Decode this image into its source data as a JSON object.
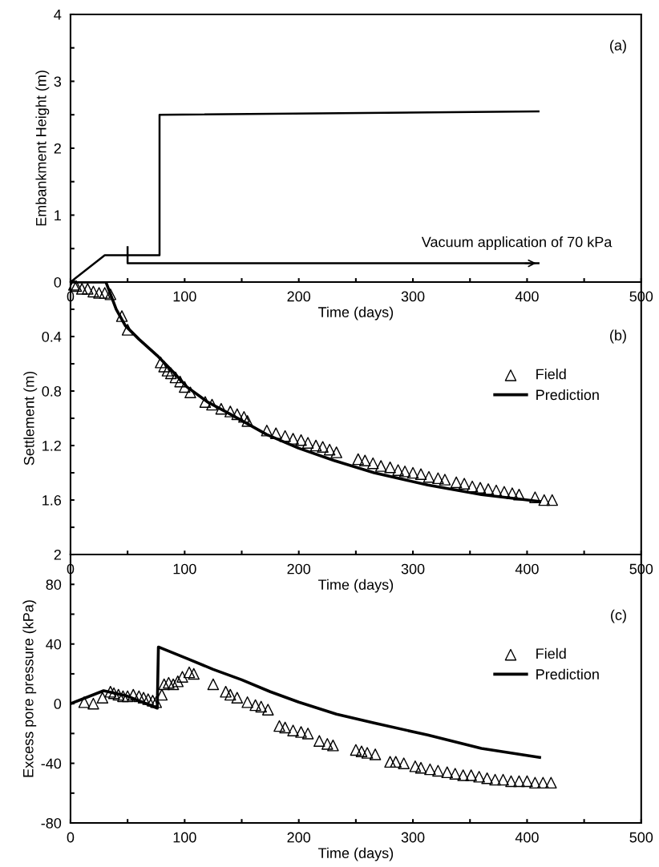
{
  "chart_data": [
    {
      "type": "line",
      "xlabel": "Time (days)",
      "ylabel": "Embankment Height (m)",
      "xlim": [
        0,
        500
      ],
      "ylim": [
        0,
        4
      ],
      "xticks": [
        0,
        {
          "value": 50,
          "label": null
        },
        100,
        {
          "value": 150,
          "label": null
        },
        200,
        {
          "value": 250,
          "label": null
        },
        300,
        {
          "value": 350,
          "label": null
        },
        400,
        {
          "value": 450,
          "label": null
        },
        500
      ],
      "yticks": [
        {
          "value": 0,
          "label": null
        },
        {
          "value": 0.5,
          "label": null
        },
        1,
        {
          "value": 1.5,
          "label": null
        },
        2,
        {
          "value": 2.5,
          "label": null
        },
        3,
        {
          "value": 3.5,
          "label": null
        },
        4
      ],
      "series": [
        {
          "type": "line",
          "color": "#000000",
          "marker": "none",
          "x": [
            0,
            30,
            78,
            78,
            410
          ],
          "values": [
            0,
            0.4,
            0.4,
            2.5,
            2.55
          ]
        },
        {
          "type": "line",
          "color": "#000000",
          "marker": "none",
          "x": [
            50,
            50,
            410
          ],
          "values": [
            0.52,
            0.28,
            0.28
          ]
        }
      ],
      "annotations": [
        "(a)",
        {
          "text": "Vacuum application of 70 kPa",
          "x": 410,
          "y": 0.28
        }
      ]
    },
    {
      "type": "line",
      "xlabel": "Time (days)",
      "ylabel": "Settlement (m)",
      "xlim": [
        0,
        500
      ],
      "ylim": [
        2,
        0
      ],
      "xticks": [
        0,
        {
          "value": 50,
          "label": null
        },
        100,
        {
          "value": 150,
          "label": null
        },
        200,
        {
          "value": 250,
          "label": null
        },
        300,
        {
          "value": 350,
          "label": null
        },
        400,
        {
          "value": 450,
          "label": null
        },
        500
      ],
      "yticks": [
        0,
        {
          "value": 0.2,
          "label": null
        },
        0.4,
        {
          "value": 0.6,
          "label": null
        },
        0.8,
        {
          "value": 1.0,
          "label": null
        },
        1.2,
        {
          "value": 1.4,
          "label": null
        },
        1.6,
        {
          "value": 1.8,
          "label": null
        },
        2
      ],
      "legend": "upper right",
      "series": [
        {
          "name": "Field",
          "type": "scatter",
          "color": "#000000",
          "marker": "triangle",
          "x": [
            3,
            5,
            10,
            15,
            20,
            25,
            30,
            35,
            45,
            50,
            79,
            82,
            85,
            88,
            92,
            96,
            100,
            105,
            118,
            124,
            132,
            140,
            146,
            152,
            155,
            172,
            180,
            188,
            195,
            202,
            208,
            215,
            221,
            227,
            233,
            252,
            258,
            265,
            272,
            280,
            287,
            293,
            300,
            307,
            314,
            322,
            328,
            338,
            345,
            352,
            359,
            366,
            373,
            380,
            387,
            393,
            407,
            415,
            422
          ],
          "values": [
            0.02,
            0.03,
            0.05,
            0.05,
            0.07,
            0.08,
            0.08,
            0.09,
            0.25,
            0.35,
            0.59,
            0.62,
            0.65,
            0.67,
            0.7,
            0.73,
            0.77,
            0.81,
            0.88,
            0.9,
            0.93,
            0.95,
            0.97,
            0.99,
            1.02,
            1.09,
            1.11,
            1.13,
            1.15,
            1.16,
            1.18,
            1.2,
            1.21,
            1.23,
            1.25,
            1.3,
            1.31,
            1.33,
            1.35,
            1.36,
            1.38,
            1.39,
            1.4,
            1.41,
            1.43,
            1.44,
            1.45,
            1.47,
            1.48,
            1.5,
            1.51,
            1.52,
            1.53,
            1.54,
            1.55,
            1.56,
            1.58,
            1.6,
            1.6
          ]
        },
        {
          "name": "Prediction",
          "type": "line",
          "color": "#000000",
          "marker": "none",
          "x": [
            0,
            31,
            40,
            48,
            60,
            76,
            90,
            102,
            120,
            140,
            172,
            200,
            231,
            266,
            313,
            360,
            411
          ],
          "values": [
            0,
            0.0,
            0.2,
            0.32,
            0.42,
            0.54,
            0.66,
            0.77,
            0.88,
            0.97,
            1.12,
            1.22,
            1.31,
            1.4,
            1.49,
            1.56,
            1.61
          ]
        }
      ],
      "annotations": [
        "(b)"
      ]
    },
    {
      "type": "line",
      "xlabel": "Time (days)",
      "ylabel": "Excess pore pressure (kPa)",
      "xlim": [
        0,
        500
      ],
      "ylim": [
        -80,
        100
      ],
      "xticks": [
        0,
        {
          "value": 50,
          "label": null
        },
        100,
        {
          "value": 150,
          "label": null
        },
        200,
        {
          "value": 250,
          "label": null
        },
        300,
        {
          "value": 350,
          "label": null
        },
        400,
        {
          "value": 450,
          "label": null
        },
        500
      ],
      "yticks": [
        -80,
        {
          "value": -60,
          "label": null
        },
        -40,
        {
          "value": -20,
          "label": null
        },
        0,
        {
          "value": 20,
          "label": null
        },
        40,
        {
          "value": 60,
          "label": null
        },
        80
      ],
      "legend": "upper right",
      "series": [
        {
          "name": "Field",
          "type": "scatter",
          "color": "#000000",
          "marker": "triangle",
          "x": [
            12,
            20,
            28,
            35,
            38,
            42,
            46,
            50,
            55,
            60,
            64,
            68,
            72,
            75,
            80,
            82,
            86,
            90,
            94,
            98,
            104,
            108,
            125,
            136,
            140,
            146,
            155,
            162,
            167,
            173,
            183,
            188,
            195,
            202,
            208,
            218,
            225,
            230,
            250,
            255,
            260,
            267,
            280,
            285,
            292,
            302,
            307,
            315,
            322,
            330,
            337,
            344,
            351,
            358,
            365,
            372,
            379,
            386,
            393,
            400,
            407,
            414,
            421
          ],
          "values": [
            1,
            0,
            4,
            8,
            7,
            6,
            5,
            5,
            6,
            5,
            4,
            3,
            2,
            1,
            6,
            13,
            14,
            13,
            15,
            18,
            21,
            20,
            13,
            8,
            6,
            4,
            1,
            -1,
            -2,
            -4,
            -15,
            -16,
            -18,
            -19,
            -20,
            -25,
            -27,
            -28,
            -31,
            -32,
            -33,
            -34,
            -39,
            -39,
            -40,
            -42,
            -43,
            -44,
            -45,
            -46,
            -47,
            -48,
            -48,
            -49,
            -50,
            -51,
            -51,
            -52,
            -52,
            -52,
            -53,
            -53,
            -53
          ]
        },
        {
          "name": "Prediction",
          "type": "line",
          "color": "#000000",
          "marker": "none",
          "x": [
            0,
            29,
            50,
            76,
            77,
            103,
            125,
            150,
            175,
            200,
            233,
            266,
            313,
            360,
            411
          ],
          "values": [
            0,
            8.7,
            5,
            -3,
            38,
            30,
            23,
            16,
            8,
            1,
            -7,
            -13,
            -21,
            -30,
            -36
          ]
        }
      ],
      "annotations": [
        "(c)"
      ]
    }
  ]
}
